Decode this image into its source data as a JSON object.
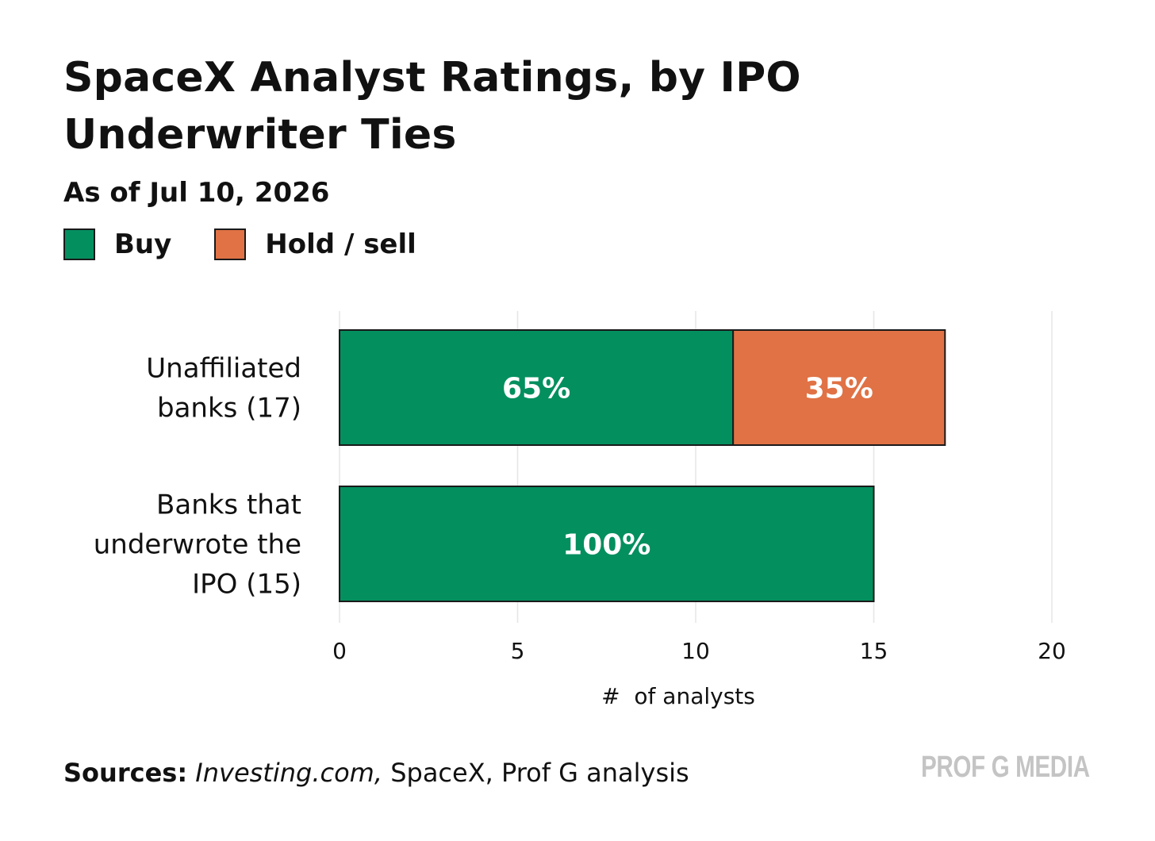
{
  "title": "SpaceX Analyst Ratings, by IPO Underwriter Ties",
  "subtitle": "As of Jul 10, 2026",
  "legend": {
    "items": [
      {
        "label": "Buy",
        "color": "#048f5f"
      },
      {
        "label": "Hold / sell",
        "color": "#e07245"
      }
    ]
  },
  "source": {
    "label": "Sources:",
    "italic_text": "Investing.com,",
    "rest_text": " SpaceX, Prof G analysis"
  },
  "brand": "PROF G MEDIA",
  "chart_data": {
    "type": "bar",
    "orientation": "horizontal",
    "stacked": true,
    "categories": [
      [
        "Unaffiliated",
        "banks (17)"
      ],
      [
        "Banks that",
        "underwrote the",
        "IPO (15)"
      ]
    ],
    "series": [
      {
        "name": "Buy",
        "color": "#048f5f",
        "values": [
          11.05,
          15
        ],
        "labels": [
          "65%",
          "100%"
        ]
      },
      {
        "name": "Hold / sell",
        "color": "#e07245",
        "values": [
          5.95,
          0
        ],
        "labels": [
          "35%",
          ""
        ]
      }
    ],
    "xlabel": "#  of analysts",
    "xlim": [
      0,
      20
    ],
    "xticks": [
      0,
      5,
      10,
      15,
      20
    ],
    "grid": "vertical"
  }
}
